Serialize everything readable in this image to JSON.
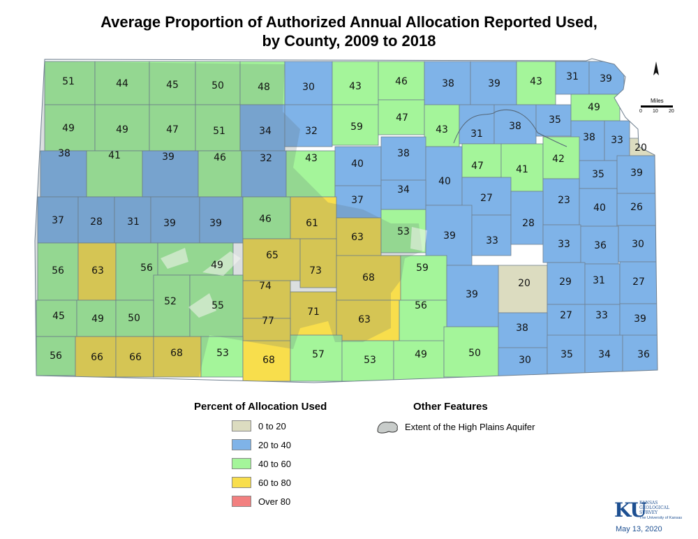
{
  "map": {
    "title_line1": "Average Proportion of Authorized Annual Allocation Reported Used,",
    "title_line2": "by County, 2009 to 2018",
    "date": "May 13, 2020",
    "logo_text": "KU",
    "logo_name_line1": "KANSAS",
    "logo_name_line2": "GEOLOGICAL",
    "logo_name_line3": "SURVEY",
    "logo_sub": "The University of Kansas",
    "scale_label": "Miles",
    "scale_ticks": [
      "0",
      "10",
      "20"
    ],
    "north_arrow": "north-arrow-icon"
  },
  "legend": {
    "title": "Percent of Allocation Used",
    "classes": [
      {
        "label": "0 to 20",
        "color": "#dcdcc0"
      },
      {
        "label": "20 to 40",
        "color": "#7fb3e8"
      },
      {
        "label": "40 to 60",
        "color": "#a4f59a"
      },
      {
        "label": "60 to 80",
        "color": "#f8de4c"
      },
      {
        "label": "Over 80",
        "color": "#f28080"
      }
    ],
    "other_title": "Other Features",
    "aquifer_label": "Extent of the High Plains Aquifer"
  },
  "counties": [
    {
      "value": "51"
    },
    {
      "value": "44"
    },
    {
      "value": "45"
    },
    {
      "value": "50"
    },
    {
      "value": "48"
    },
    {
      "value": "30"
    },
    {
      "value": "43"
    },
    {
      "value": "46"
    },
    {
      "value": "38"
    },
    {
      "value": "39"
    },
    {
      "value": "43"
    },
    {
      "value": "31"
    },
    {
      "value": "39"
    },
    {
      "value": "49"
    },
    {
      "value": "49"
    },
    {
      "value": "47"
    },
    {
      "value": "51"
    },
    {
      "value": "34"
    },
    {
      "value": "32"
    },
    {
      "value": "59"
    },
    {
      "value": "47"
    },
    {
      "value": "43"
    },
    {
      "value": "31"
    },
    {
      "value": "38"
    },
    {
      "value": "35"
    },
    {
      "value": "49"
    },
    {
      "value": "38"
    },
    {
      "value": "33"
    },
    {
      "value": "20"
    },
    {
      "value": "38"
    },
    {
      "value": "41"
    },
    {
      "value": "39"
    },
    {
      "value": "46"
    },
    {
      "value": "32"
    },
    {
      "value": "43"
    },
    {
      "value": "40"
    },
    {
      "value": "38"
    },
    {
      "value": "40"
    },
    {
      "value": "47"
    },
    {
      "value": "41"
    },
    {
      "value": "42"
    },
    {
      "value": "35"
    },
    {
      "value": "39"
    },
    {
      "value": "37"
    },
    {
      "value": "34"
    },
    {
      "value": "27"
    },
    {
      "value": "23"
    },
    {
      "value": "40"
    },
    {
      "value": "26"
    },
    {
      "value": "37"
    },
    {
      "value": "28"
    },
    {
      "value": "31"
    },
    {
      "value": "39"
    },
    {
      "value": "39"
    },
    {
      "value": "46"
    },
    {
      "value": "61"
    },
    {
      "value": "63"
    },
    {
      "value": "53"
    },
    {
      "value": "39"
    },
    {
      "value": "33"
    },
    {
      "value": "28"
    },
    {
      "value": "33"
    },
    {
      "value": "36"
    },
    {
      "value": "30"
    },
    {
      "value": "56"
    },
    {
      "value": "63"
    },
    {
      "value": "56"
    },
    {
      "value": "49"
    },
    {
      "value": "65"
    },
    {
      "value": "73"
    },
    {
      "value": "68"
    },
    {
      "value": "59"
    },
    {
      "value": "20"
    },
    {
      "value": "29"
    },
    {
      "value": "31"
    },
    {
      "value": "27"
    },
    {
      "value": "52"
    },
    {
      "value": "74"
    },
    {
      "value": "39"
    },
    {
      "value": "45"
    },
    {
      "value": "49"
    },
    {
      "value": "50"
    },
    {
      "value": "55"
    },
    {
      "value": "71"
    },
    {
      "value": "56"
    },
    {
      "value": "27"
    },
    {
      "value": "33"
    },
    {
      "value": "39"
    },
    {
      "value": "77"
    },
    {
      "value": "63"
    },
    {
      "value": "38"
    },
    {
      "value": "56"
    },
    {
      "value": "66"
    },
    {
      "value": "66"
    },
    {
      "value": "68"
    },
    {
      "value": "53"
    },
    {
      "value": "68"
    },
    {
      "value": "57"
    },
    {
      "value": "53"
    },
    {
      "value": "49"
    },
    {
      "value": "50"
    },
    {
      "value": "30"
    },
    {
      "value": "35"
    },
    {
      "value": "34"
    },
    {
      "value": "36"
    }
  ]
}
